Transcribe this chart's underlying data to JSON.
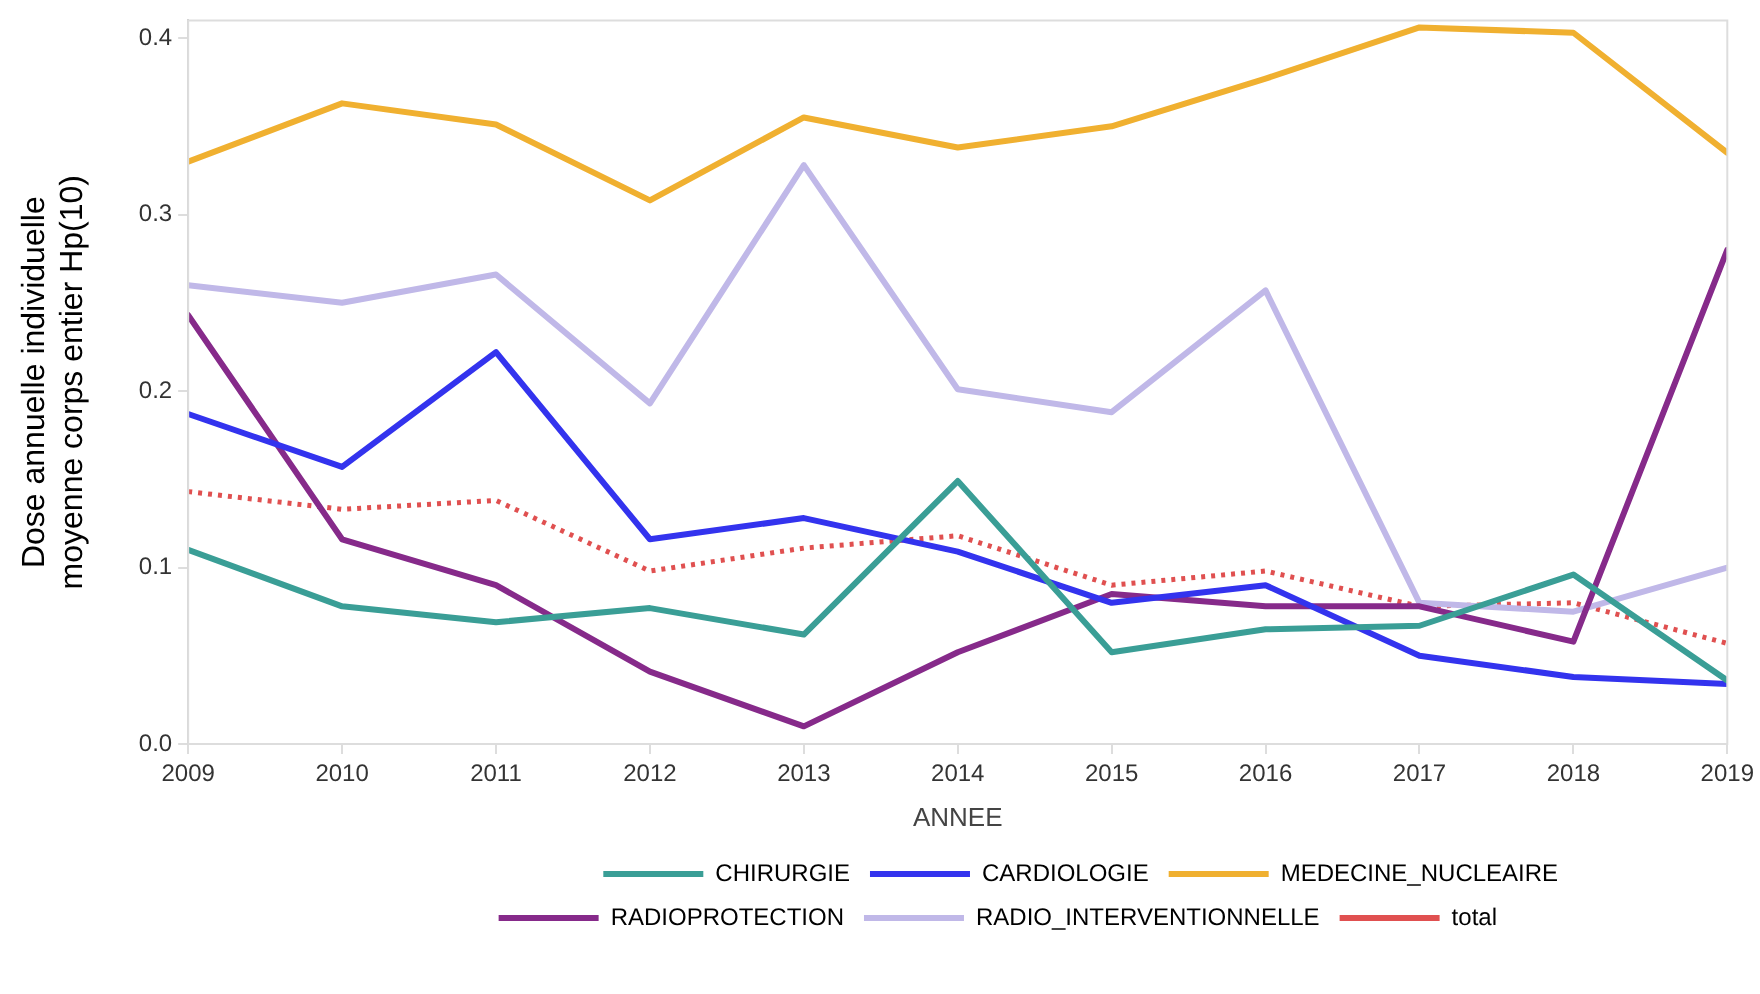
{
  "chart_data": {
    "type": "line",
    "xlabel": "ANNEE",
    "ylabel": "Dose annuelle individuelle\nmoyenne corps entier Hp(10)",
    "x": [
      2009,
      2010,
      2011,
      2012,
      2013,
      2014,
      2015,
      2016,
      2017,
      2018,
      2019
    ],
    "xlim": [
      2009,
      2019
    ],
    "xticks": [
      2009,
      2010,
      2011,
      2012,
      2013,
      2014,
      2015,
      2016,
      2017,
      2018,
      2019
    ],
    "ylim": [
      0,
      0.41
    ],
    "yticks": [
      {
        "value": 0,
        "label": "0.0"
      },
      0.1,
      0.2,
      0.3,
      0.4
    ],
    "grid": false,
    "legend": "bottom",
    "marker": "none",
    "line_style": "solid",
    "series": [
      {
        "name": "CHIRURGIE",
        "color": "#3a9e96",
        "values": [
          0.11,
          0.078,
          0.069,
          0.077,
          0.062,
          0.149,
          0.052,
          0.065,
          0.067,
          0.096,
          0.036
        ]
      },
      {
        "name": "CARDIOLOGIE",
        "color": "#3333ee",
        "values": [
          0.187,
          0.157,
          0.222,
          0.116,
          0.128,
          0.109,
          0.08,
          0.09,
          0.05,
          0.038,
          0.034
        ]
      },
      {
        "name": "MEDECINE_NUCLEAIRE",
        "color": "#f0b030",
        "values": [
          0.33,
          0.363,
          0.351,
          0.308,
          0.355,
          0.338,
          0.35,
          0.377,
          0.406,
          0.403,
          0.335
        ]
      },
      {
        "name": "RADIOPROTECTION",
        "color": "#862a8a",
        "values": [
          0.243,
          0.116,
          0.09,
          0.041,
          0.01,
          0.052,
          0.085,
          0.078,
          0.078,
          0.058,
          0.28
        ]
      },
      {
        "name": "RADIO_INTERVENTIONNELLE",
        "color": "#c0b8e8",
        "values": [
          0.26,
          0.25,
          0.266,
          0.193,
          0.328,
          0.201,
          0.188,
          0.257,
          0.08,
          0.075,
          0.1
        ]
      },
      {
        "name": "total",
        "color": "#e05050",
        "line_style": "dotted",
        "values": [
          0.143,
          0.133,
          0.138,
          0.098,
          0.111,
          0.118,
          0.09,
          0.098,
          0.078,
          0.08,
          0.057
        ]
      }
    ]
  }
}
